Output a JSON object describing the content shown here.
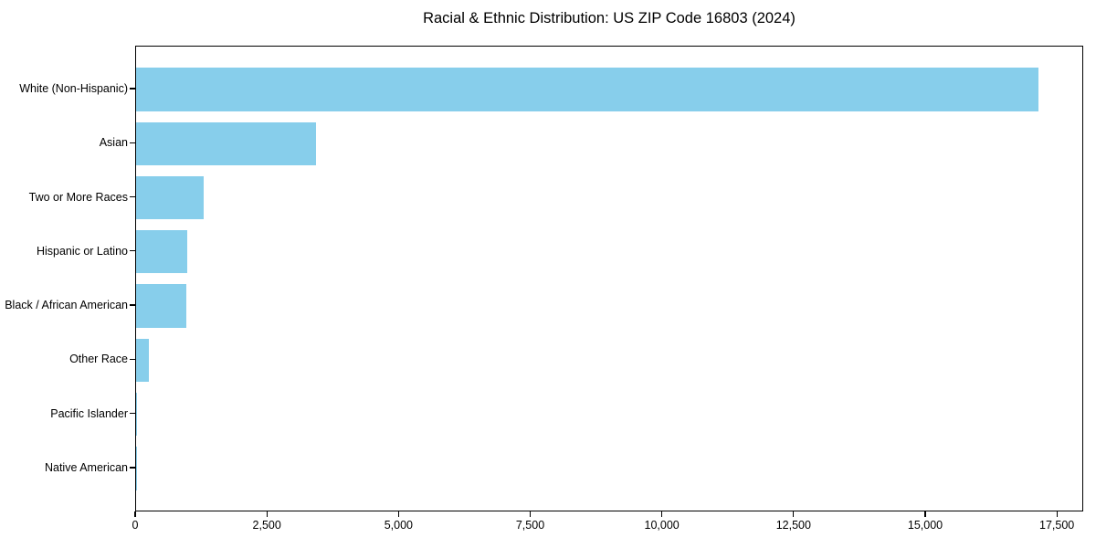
{
  "colors": {
    "bar": "#87CEEB",
    "axis": "#000000",
    "background": "#FFFFFF",
    "text": "#000000"
  },
  "chart_data": {
    "type": "bar",
    "orientation": "horizontal",
    "title": "Racial & Ethnic Distribution: US ZIP Code 16803 (2024)",
    "xlabel": "",
    "ylabel": "",
    "categories": [
      "White (Non-Hispanic)",
      "Asian",
      "Two or More Races",
      "Hispanic or Latino",
      "Black / African American",
      "Other Race",
      "Pacific Islander",
      "Native American"
    ],
    "values": [
      17140,
      3415,
      1275,
      970,
      955,
      240,
      15,
      10
    ],
    "xlim": [
      0,
      18000
    ],
    "xticks": [
      0,
      2500,
      5000,
      7500,
      10000,
      12500,
      15000,
      17500
    ],
    "xtick_labels": [
      "0",
      "2,500",
      "5,000",
      "7,500",
      "10,000",
      "12,500",
      "15,000",
      "17,500"
    ],
    "bar_color": "#87CEEB",
    "grid": false,
    "legend": null
  }
}
